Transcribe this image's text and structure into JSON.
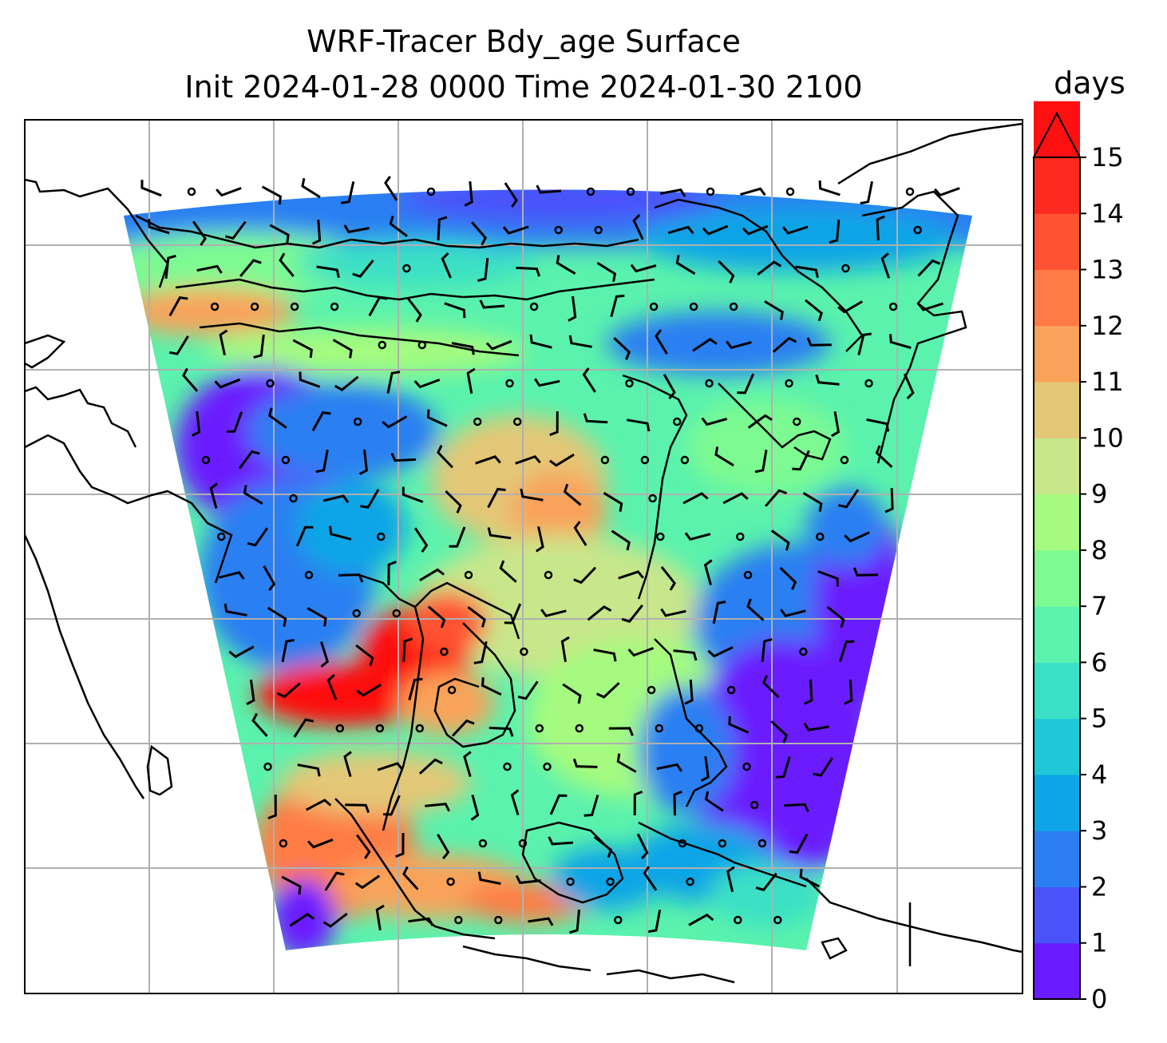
{
  "title": {
    "line1": "WRF-Tracer Bdy_age Surface",
    "line2": "Init 2024-01-28 0000 Time 2024-01-30 2100"
  },
  "colorbar": {
    "unit": "days",
    "min": 0,
    "max": 15,
    "extend": "max",
    "ticks": [
      "0",
      "1",
      "2",
      "3",
      "4",
      "5",
      "6",
      "7",
      "8",
      "9",
      "10",
      "11",
      "12",
      "13",
      "14",
      "15"
    ],
    "colors": [
      "#6a1bff",
      "#4a52fa",
      "#2b7ff2",
      "#0ea5e6",
      "#1ec8d8",
      "#3ae0c5",
      "#5af2ad",
      "#7dfa92",
      "#a4fb7f",
      "#c8e68a",
      "#e3c777",
      "#f9a35a",
      "#ff7b45",
      "#ff5233",
      "#ff2a1f",
      "#ff1010"
    ]
  },
  "map": {
    "gridlines": true,
    "wind_barbs": true
  }
}
